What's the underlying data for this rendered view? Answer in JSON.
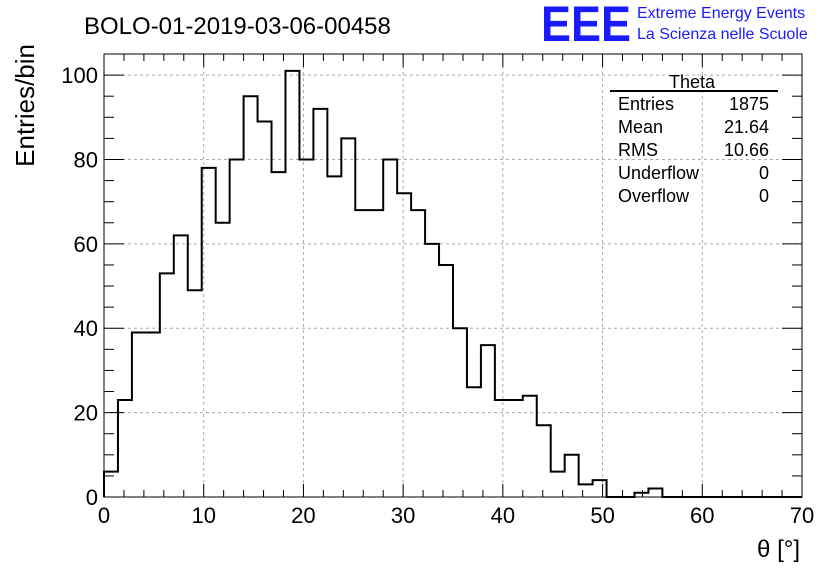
{
  "header": {
    "run_title": "BOLO-01-2019-03-06-00458",
    "logo_letters": "EEE",
    "logo_line1": "Extreme Energy Events",
    "logo_line2": "La Scienza nelle Scuole",
    "logo_color": "#1a1aff"
  },
  "stats_box": {
    "title": "Theta",
    "rows": [
      {
        "label": "Entries",
        "value": "1875"
      },
      {
        "label": "Mean",
        "value": "21.64"
      },
      {
        "label": "RMS",
        "value": "10.66"
      },
      {
        "label": "Underflow",
        "value": "0"
      },
      {
        "label": "Overflow",
        "value": "0"
      }
    ]
  },
  "chart_data": {
    "type": "bar",
    "style": "step-histogram",
    "title": "BOLO-01-2019-03-06-00458",
    "xlabel": "θ [°]",
    "ylabel": "Entries/bin",
    "xlim": [
      0,
      70
    ],
    "ylim": [
      0,
      105
    ],
    "bin_width": 1.4,
    "x_ticks": [
      "0",
      "10",
      "20",
      "30",
      "40",
      "50",
      "60",
      "70"
    ],
    "y_ticks": [
      "0",
      "20",
      "40",
      "60",
      "80",
      "100"
    ],
    "grid": true,
    "values": [
      6,
      23,
      39,
      39,
      53,
      62,
      49,
      78,
      65,
      80,
      95,
      89,
      77,
      101,
      80,
      92,
      76,
      85,
      68,
      68,
      80,
      72,
      68,
      60,
      55,
      40,
      26,
      36,
      23,
      23,
      24,
      17,
      6,
      10,
      3,
      4,
      0,
      0,
      1,
      2,
      0,
      0,
      0,
      0,
      0,
      0,
      0,
      0,
      0,
      0
    ],
    "line_color": "#000000",
    "grid_color": "#aaaaaa"
  }
}
